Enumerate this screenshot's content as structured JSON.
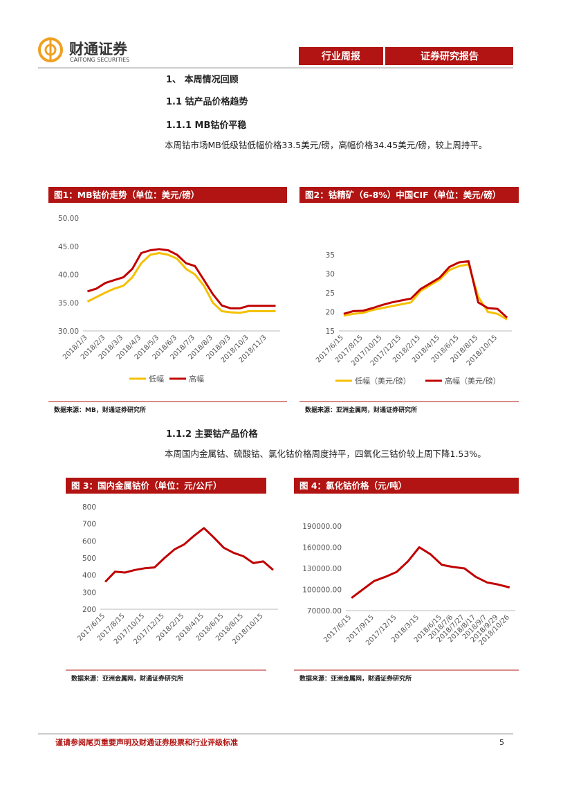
{
  "header": {
    "logo_cn": "财通证券",
    "logo_en": "CAITONG SECURITIES",
    "tab_left": "行业周报",
    "tab_right": "证券研究报告"
  },
  "body": {
    "h1": "1、 本周情况回顾",
    "h2": "1.1  钴产品价格趋势",
    "h3a": "1.1.1  MB钴价平稳",
    "p1": "本周钴市场MB低级钴低幅价格33.5美元/磅，高幅价格34.45美元/磅，较上周持平。",
    "h3b": "1.1.2  主要钴产品价格",
    "p2": "本周国内金属钴、硫酸钴、氯化钴价格周度持平，四氧化三钴价较上周下降1.53%。"
  },
  "chart_data": [
    {
      "type": "line",
      "title": "图1：MB钴价走势（单位：美元/磅）",
      "source": "数据来源：MB，财通证券研究所",
      "legend": "bottom",
      "categories": [
        "2018/1/3",
        null,
        "2018/2/3",
        null,
        "2018/3/3",
        null,
        "2018/4/3",
        null,
        "2018/5/3",
        null,
        "2018/6/3",
        null,
        "2018/7/3",
        null,
        "2018/8/3",
        null,
        "2018/9/3",
        null,
        "2018/10/3",
        null,
        "2018/11/3",
        null
      ],
      "series": [
        {
          "name": "低幅",
          "color": "#f5c000",
          "values": [
            35.2,
            36,
            36.8,
            37.5,
            38,
            39.5,
            42,
            43.5,
            43.8,
            43.5,
            42.8,
            41,
            40,
            38,
            35,
            33.5,
            33.3,
            33.2,
            33.5,
            33.5,
            33.5,
            33.5
          ]
        },
        {
          "name": "高幅",
          "color": "#c00000",
          "values": [
            37,
            37.5,
            38.5,
            39,
            39.5,
            41,
            43.8,
            44.3,
            44.5,
            44.3,
            43.5,
            42,
            41.5,
            39,
            36.5,
            34.5,
            34,
            34,
            34.45,
            34.45,
            34.45,
            34.45
          ]
        }
      ],
      "ylim": [
        30,
        50
      ],
      "yticks": [
        {
          "value": 30,
          "label": "30.00"
        },
        {
          "value": 35,
          "label": "35.00"
        },
        {
          "value": 40,
          "label": "40.00"
        },
        {
          "value": 45,
          "label": "45.00"
        },
        {
          "value": 50,
          "label": "50.00"
        }
      ]
    },
    {
      "type": "line",
      "title": "图2：钴精矿（6-8%）中国CIF（单位：美元/磅）",
      "source": "数据来源：亚洲金属网，财通证券研究所",
      "legend": "bottom",
      "categories": [
        "2017/6/15",
        null,
        "2017/8/15",
        null,
        "2017/10/15",
        null,
        "2017/12/15",
        null,
        "2018/2/15",
        null,
        "2018/4/15",
        null,
        "2018/6/15",
        null,
        "2018/8/15",
        null,
        "2018/10/15",
        null
      ],
      "series": [
        {
          "name": "低幅（美元/磅）",
          "color": "#f5c000",
          "values": [
            19,
            19.5,
            19.7,
            20.5,
            21,
            21.5,
            22,
            22.5,
            25.5,
            27,
            28.5,
            31,
            32,
            32.5,
            24,
            20,
            19.5,
            18
          ]
        },
        {
          "name": "高幅（美元/磅）",
          "color": "#c00000",
          "values": [
            19.5,
            20.2,
            20.3,
            21,
            21.8,
            22.5,
            23,
            23.5,
            26,
            27.5,
            29,
            31.8,
            33,
            33.3,
            22.5,
            21,
            20.8,
            18.5
          ]
        }
      ],
      "ylim": [
        15,
        35
      ],
      "yticks": [
        15,
        20,
        25,
        30,
        35
      ]
    },
    {
      "type": "line",
      "title": "图 3：国内金属钴价（单位：元/公斤）",
      "source": "数据来源：亚洲金属网，财通证券研究所",
      "categories": [
        "2017/6/15",
        null,
        "2017/8/15",
        null,
        "2017/10/15",
        null,
        "2017/12/15",
        null,
        "2018/2/15",
        null,
        "2018/4/15",
        null,
        "2018/6/15",
        null,
        "2018/8/15",
        null,
        "2018/10/15",
        null
      ],
      "series": [
        {
          "name": "金属钴",
          "color": "#c00000",
          "values": [
            360,
            420,
            415,
            430,
            440,
            445,
            500,
            550,
            580,
            630,
            675,
            620,
            560,
            530,
            510,
            470,
            480,
            430
          ]
        }
      ],
      "ylim": [
        200,
        800
      ],
      "yticks": [
        200,
        300,
        400,
        500,
        600,
        700,
        800
      ]
    },
    {
      "type": "line",
      "title": "图 4：氯化钴价格（元/吨）",
      "source": "数据来源：亚洲金属网，财通证券研究所",
      "categories": [
        "2017/6/15",
        null,
        "2017/9/15",
        null,
        "2017/12/15",
        null,
        "2018/3/15",
        null,
        "2018/6/15",
        "2018/7/6",
        "2018/7/27",
        "2018/8/17",
        "2018/9/7",
        "2018/9/29",
        "2018/10/26"
      ],
      "series": [
        {
          "name": "氯化钴",
          "color": "#c00000",
          "values": [
            88000,
            100000,
            112000,
            118000,
            125000,
            140000,
            160000,
            150000,
            135000,
            132000,
            130000,
            118000,
            110000,
            107000,
            103000
          ]
        }
      ],
      "ylim": [
        70000,
        190000
      ],
      "yticks": [
        {
          "value": 70000,
          "label": "70000.00"
        },
        {
          "value": 100000,
          "label": "100000.00"
        },
        {
          "value": 130000,
          "label": "130000.00"
        },
        {
          "value": 160000,
          "label": "160000.00"
        },
        {
          "value": 190000,
          "label": "190000.00"
        }
      ]
    }
  ],
  "footer": {
    "note": "谨请参阅尾页重要声明及财通证券股票和行业评级标准",
    "page": "5"
  }
}
